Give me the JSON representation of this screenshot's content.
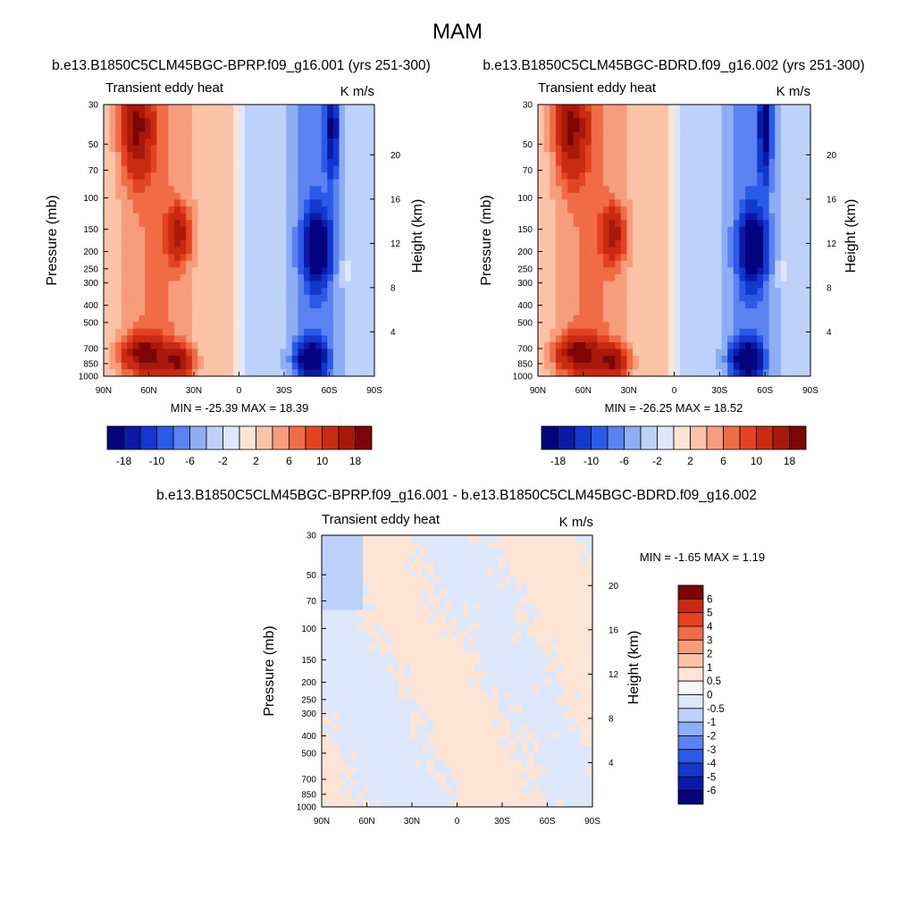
{
  "title": "MAM",
  "colors": {
    "fill_scale_main": [
      "#03037d",
      "#0a1aa6",
      "#1238d0",
      "#2a5ae8",
      "#5a82f0",
      "#8daef5",
      "#bcd2f8",
      "#dde9fb",
      "#fde4d4",
      "#fbc3a8",
      "#f79d7b",
      "#f06c45",
      "#e44220",
      "#c92a10",
      "#a8190a",
      "#7c0606"
    ],
    "fill_scale_diff": [
      "#03037d",
      "#0a1aa6",
      "#1238d0",
      "#2a5ae8",
      "#5a82f0",
      "#8daef5",
      "#bcd2f8",
      "#dde9fb",
      "#f7f7f7",
      "#fde4d4",
      "#fbc3a8",
      "#f79d7b",
      "#f06c45",
      "#e44220",
      "#c92a10",
      "#7c0606"
    ]
  },
  "chart_data": [
    {
      "type": "heatmap",
      "title": "b.e13.B1850C5CLM45BGC-BPRP.f09_g16.001 (yrs 251-300)",
      "left_label": "Transient eddy heat",
      "right_label": "K m/s",
      "xlabel": "",
      "ylabel": "Pressure (mb)",
      "ylabel_right": "Height (km)",
      "xticks": [
        "90N",
        "60N",
        "30N",
        "0",
        "30S",
        "60S",
        "90S"
      ],
      "yticks": [
        30,
        50,
        70,
        100,
        150,
        200,
        250,
        300,
        400,
        500,
        700,
        850,
        1000
      ],
      "yticks_right": [
        4,
        8,
        12,
        16,
        20
      ],
      "xlim": [
        90,
        -90
      ],
      "ylim": [
        1000,
        30
      ],
      "min_max_text": "MIN = -25.39  MAX =  18.39",
      "min": -25.39,
      "max": 18.39,
      "colorbar_labels": [
        "-18",
        "-10",
        "-6",
        "-2",
        "2",
        "6",
        "10",
        "18"
      ],
      "features": [
        {
          "lat": 68,
          "p": 40,
          "value": 14,
          "wlat": 10,
          "wlog": 0.28
        },
        {
          "lat": 40,
          "p": 160,
          "value": 12,
          "wlat": 8,
          "wlog": 0.15
        },
        {
          "lat": 63,
          "p": 750,
          "value": 16,
          "wlat": 14,
          "wlog": 0.1
        },
        {
          "lat": 40,
          "p": 820,
          "value": 14,
          "wlat": 9,
          "wlog": 0.08
        },
        {
          "lat": -52,
          "p": 190,
          "value": -22,
          "wlat": 8,
          "wlog": 0.18
        },
        {
          "lat": -48,
          "p": 800,
          "value": -22,
          "wlat": 9,
          "wlog": 0.09
        },
        {
          "lat": -62,
          "p": 40,
          "value": -14,
          "wlat": 4,
          "wlog": 0.28
        },
        {
          "lat": -72,
          "p": 260,
          "value": 3,
          "wlat": 3,
          "wlog": 0.08
        }
      ]
    },
    {
      "type": "heatmap",
      "title": "b.e13.B1850C5CLM45BGC-BDRD.f09_g16.002 (yrs 251-300)",
      "left_label": "Transient eddy heat",
      "right_label": "K m/s",
      "xlabel": "",
      "ylabel": "Pressure (mb)",
      "ylabel_right": "Height (km)",
      "xticks": [
        "90N",
        "60N",
        "30N",
        "0",
        "30S",
        "60S",
        "90S"
      ],
      "yticks": [
        30,
        50,
        70,
        100,
        150,
        200,
        250,
        300,
        400,
        500,
        700,
        850,
        1000
      ],
      "yticks_right": [
        4,
        8,
        12,
        16,
        20
      ],
      "xlim": [
        90,
        -90
      ],
      "ylim": [
        1000,
        30
      ],
      "min_max_text": "MIN = -26.25  MAX =  18.52",
      "min": -26.25,
      "max": 18.52,
      "colorbar_labels": [
        "-18",
        "-10",
        "-6",
        "-2",
        "2",
        "6",
        "10",
        "18"
      ],
      "features": [
        {
          "lat": 68,
          "p": 40,
          "value": 14,
          "wlat": 10,
          "wlog": 0.28
        },
        {
          "lat": 40,
          "p": 160,
          "value": 12,
          "wlat": 8,
          "wlog": 0.15
        },
        {
          "lat": 63,
          "p": 750,
          "value": 16,
          "wlat": 14,
          "wlog": 0.1
        },
        {
          "lat": 40,
          "p": 820,
          "value": 14,
          "wlat": 9,
          "wlog": 0.08
        },
        {
          "lat": -52,
          "p": 190,
          "value": -23,
          "wlat": 8,
          "wlog": 0.18
        },
        {
          "lat": -48,
          "p": 800,
          "value": -23,
          "wlat": 9,
          "wlog": 0.09
        },
        {
          "lat": -60,
          "p": 40,
          "value": -15,
          "wlat": 4,
          "wlog": 0.28
        },
        {
          "lat": -72,
          "p": 260,
          "value": 3,
          "wlat": 3,
          "wlog": 0.08
        }
      ]
    },
    {
      "type": "heatmap",
      "title": "b.e13.B1850C5CLM45BGC-BPRP.f09_g16.001 - b.e13.B1850C5CLM45BGC-BDRD.f09_g16.002",
      "left_label": "Transient eddy heat",
      "right_label": "K m/s",
      "xlabel": "",
      "ylabel": "Pressure (mb)",
      "ylabel_right": "Height (km)",
      "xticks": [
        "90N",
        "60N",
        "30N",
        "0",
        "30S",
        "60S",
        "90S"
      ],
      "yticks": [
        30,
        50,
        70,
        100,
        150,
        200,
        250,
        300,
        400,
        500,
        700,
        850,
        1000
      ],
      "yticks_right": [
        4,
        8,
        12,
        16,
        20
      ],
      "xlim": [
        90,
        -90
      ],
      "ylim": [
        1000,
        30
      ],
      "min_max_text": "MIN =  -1.65  MAX =   1.19",
      "min": -1.65,
      "max": 1.19,
      "colorbar_labels": [
        "6",
        "5",
        "4",
        "3",
        "2",
        "1",
        "0.5",
        "0",
        "-0.5",
        "-1",
        "-2",
        "-3",
        "-4",
        "-5",
        "-6"
      ],
      "features": []
    }
  ]
}
